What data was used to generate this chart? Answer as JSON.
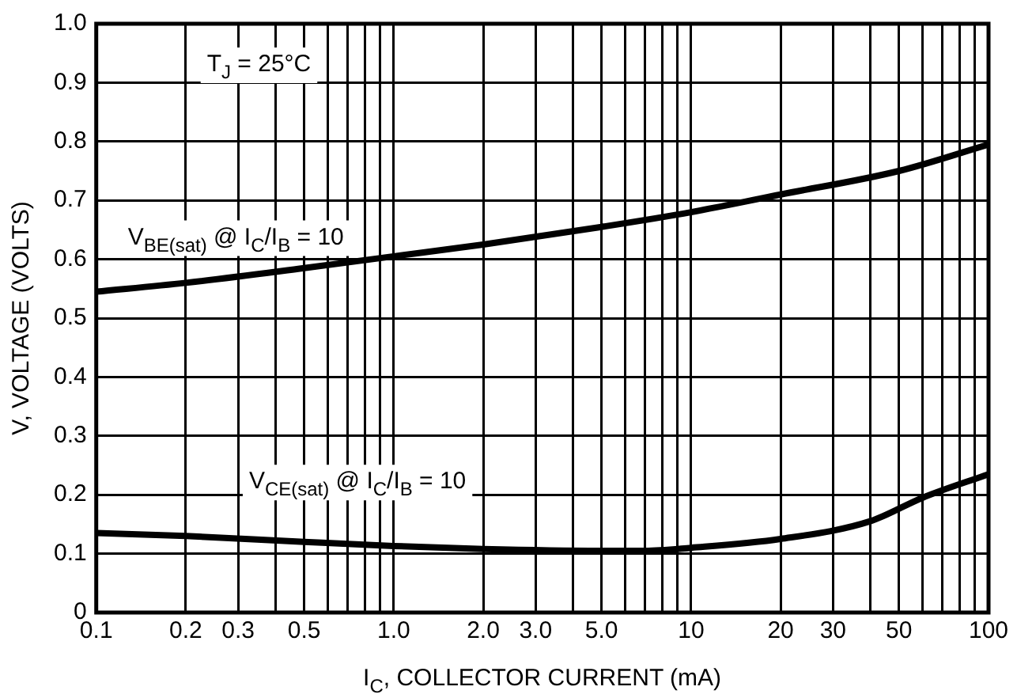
{
  "chart_data": {
    "type": "line",
    "xlabel": "I$_{C}$, COLLECTOR CURRENT (mA)",
    "ylabel": "V, VOLTAGE (VOLTS)",
    "annotations": [
      "T$_{J}$ = 25°C"
    ],
    "series": [
      {
        "name": "V$_{BE(sat)}$ @ I$_{C}$/I$_{B}$ = 10",
        "color": "#000000",
        "x": [
          0.1,
          0.2,
          0.5,
          1,
          2,
          5,
          10,
          20,
          50,
          100
        ],
        "values": [
          0.545,
          0.56,
          0.585,
          0.605,
          0.625,
          0.655,
          0.68,
          0.71,
          0.75,
          0.795
        ]
      },
      {
        "name": "V$_{CE(sat)}$ @ I$_{C}$/I$_{B}$ = 10",
        "color": "#000000",
        "x": [
          0.1,
          0.2,
          0.5,
          1,
          2,
          5,
          7,
          10,
          20,
          40,
          60,
          100
        ],
        "values": [
          0.135,
          0.13,
          0.12,
          0.113,
          0.108,
          0.105,
          0.105,
          0.11,
          0.125,
          0.155,
          0.195,
          0.235
        ]
      }
    ],
    "log": "x",
    "xlim": [
      0.1,
      100
    ],
    "ylim": [
      0,
      1.0
    ],
    "xticks": [
      {
        "value": 0.1,
        "label": "0.1"
      },
      {
        "value": 0.2,
        "label": "0.2"
      },
      {
        "value": 0.3,
        "label": "0.3"
      },
      {
        "value": 0.4,
        "label": null
      },
      {
        "value": 0.5,
        "label": "0.5"
      },
      {
        "value": 0.6,
        "label": null
      },
      {
        "value": 0.7,
        "label": null
      },
      {
        "value": 0.8,
        "label": null
      },
      {
        "value": 0.9,
        "label": null
      },
      {
        "value": 1,
        "label": "1.0"
      },
      {
        "value": 2,
        "label": "2.0"
      },
      {
        "value": 3,
        "label": "3.0"
      },
      {
        "value": 4,
        "label": null
      },
      {
        "value": 5,
        "label": "5.0"
      },
      {
        "value": 6,
        "label": null
      },
      {
        "value": 7,
        "label": null
      },
      {
        "value": 8,
        "label": null
      },
      {
        "value": 9,
        "label": null
      },
      {
        "value": 10,
        "label": "10"
      },
      {
        "value": 20,
        "label": "20"
      },
      {
        "value": 30,
        "label": "30"
      },
      {
        "value": 40,
        "label": null
      },
      {
        "value": 50,
        "label": "50"
      },
      {
        "value": 60,
        "label": null
      },
      {
        "value": 70,
        "label": null
      },
      {
        "value": 80,
        "label": null
      },
      {
        "value": 90,
        "label": null
      },
      {
        "value": 100,
        "label": "100"
      }
    ],
    "yticks": [
      0,
      0.1,
      0.2,
      0.3,
      0.4,
      0.5,
      0.6,
      0.7,
      0.8,
      0.9,
      {
        "value": 1.0,
        "label": "1.0"
      }
    ],
    "grid": true,
    "legend": false,
    "marker": "none",
    "line_style": "solid"
  }
}
